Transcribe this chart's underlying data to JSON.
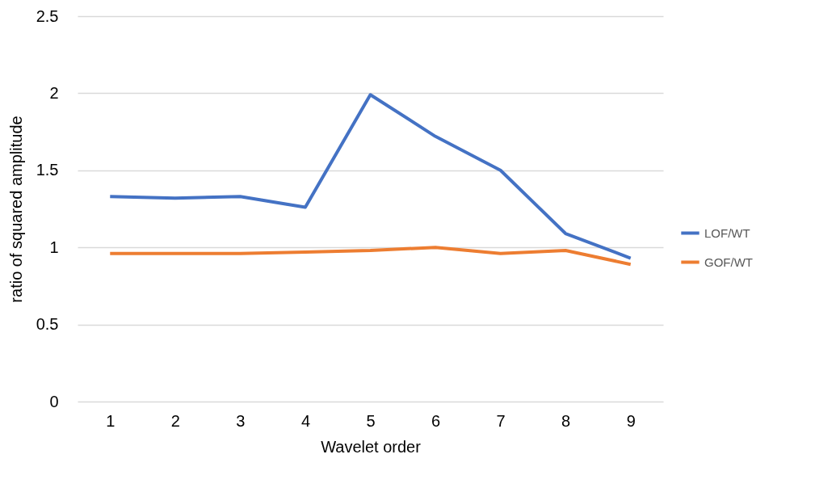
{
  "chart_data": {
    "type": "line",
    "xlabel": "Wavelet order",
    "ylabel": "ratio of squared amplitude",
    "categories": [
      "1",
      "2",
      "3",
      "4",
      "5",
      "6",
      "7",
      "8",
      "9"
    ],
    "series": [
      {
        "name": "LOF/WT",
        "color": "#4472c4",
        "values": [
          1.33,
          1.32,
          1.33,
          1.26,
          1.99,
          1.72,
          1.5,
          1.09,
          0.93
        ]
      },
      {
        "name": "GOF/WT",
        "color": "#ed7d31",
        "values": [
          0.96,
          0.96,
          0.96,
          0.97,
          0.98,
          1.0,
          0.96,
          0.98,
          0.89
        ]
      }
    ],
    "ylim": [
      0,
      2.5
    ],
    "yticks": [
      0,
      0.5,
      1,
      1.5,
      2,
      2.5
    ],
    "grid": "y",
    "legend": "right",
    "marker": "none",
    "line_style": "solid"
  }
}
